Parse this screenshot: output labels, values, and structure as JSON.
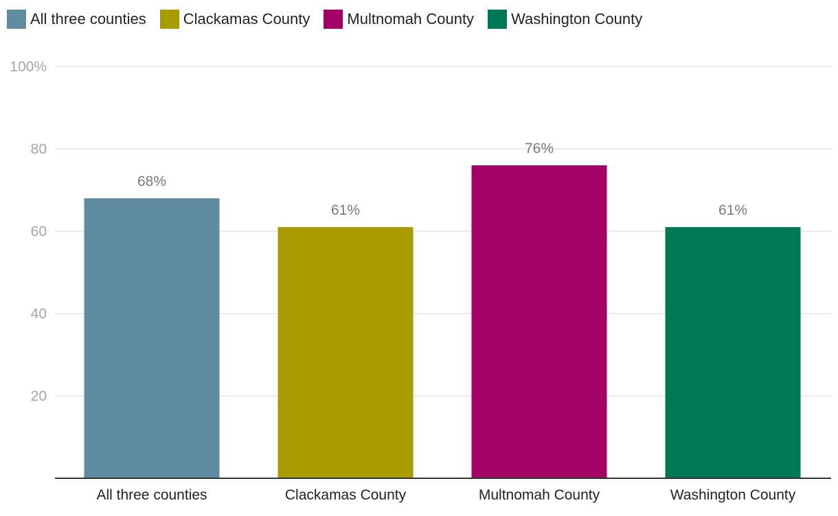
{
  "chart_data": {
    "type": "bar",
    "title": "",
    "xlabel": "",
    "ylabel": "",
    "ylim": [
      0,
      100
    ],
    "yticks": [
      20,
      40,
      60,
      80,
      100
    ],
    "ytick_labels": [
      "20",
      "40",
      "60",
      "80",
      "100%"
    ],
    "grid": true,
    "legend_position": "top-left",
    "categories": [
      "All three counties",
      "Clackamas County",
      "Multnomah County",
      "Washington County"
    ],
    "values": [
      68,
      61,
      76,
      61
    ],
    "value_labels": [
      "68%",
      "61%",
      "76%",
      "61%"
    ],
    "colors": [
      "#5f8c9e",
      "#a89b00",
      "#a30066",
      "#007853"
    ],
    "legend": [
      {
        "label": "All three counties",
        "color": "#5f8c9e"
      },
      {
        "label": "Clackamas County",
        "color": "#a89b00"
      },
      {
        "label": "Multnomah County",
        "color": "#a30066"
      },
      {
        "label": "Washington County",
        "color": "#007853"
      }
    ]
  }
}
